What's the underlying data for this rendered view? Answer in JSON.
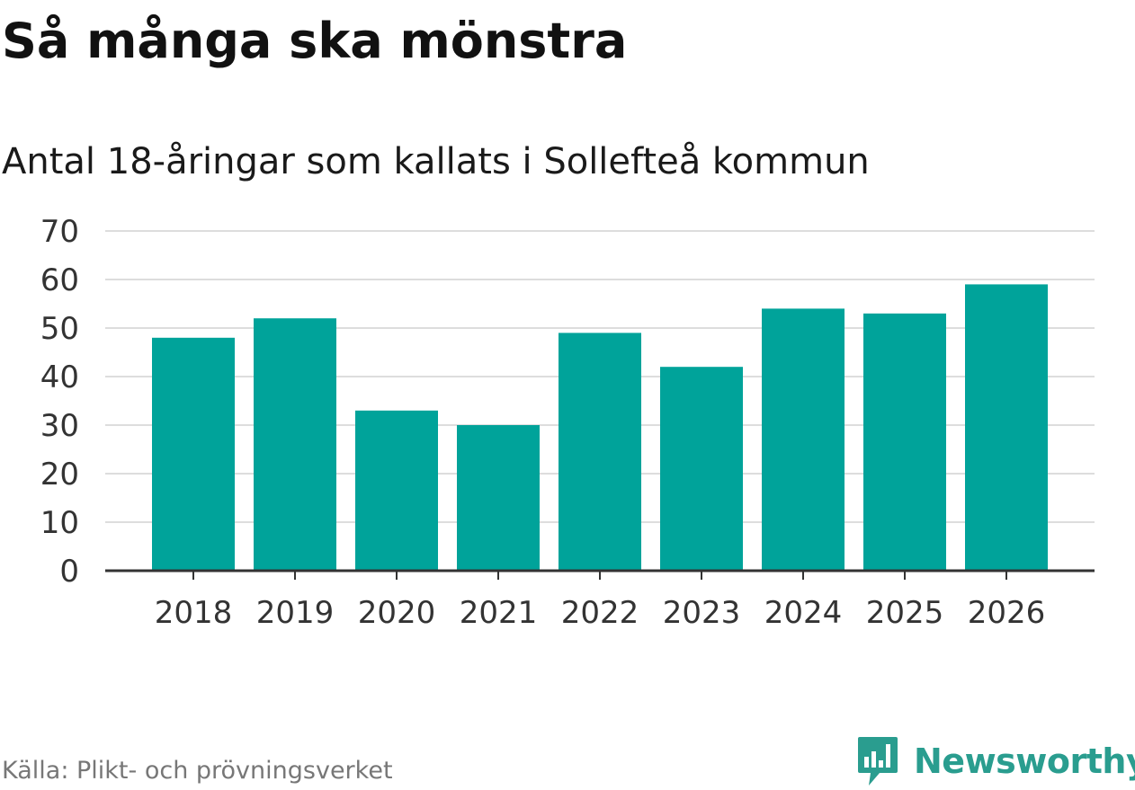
{
  "title": "Så många ska mönstra",
  "subtitle": "Antal 18-åringar som kallats i Sollefteå kommun",
  "source": "Källa: Plikt- och prövningsverket",
  "brand": {
    "name": "Newsworthy",
    "color": "#2a9d8f"
  },
  "colors": {
    "bar": "#00a39a",
    "grid": "#dddddd",
    "axis": "#333333",
    "tick_text": "#333333"
  },
  "chart_data": {
    "type": "bar",
    "categories": [
      "2018",
      "2019",
      "2020",
      "2021",
      "2022",
      "2023",
      "2024",
      "2025",
      "2026"
    ],
    "values": [
      48,
      52,
      33,
      30,
      49,
      42,
      54,
      53,
      59
    ],
    "yticks": [
      0,
      10,
      20,
      30,
      40,
      50,
      60,
      70
    ],
    "ylim": [
      0,
      70
    ],
    "grid": true,
    "legend": "none"
  }
}
